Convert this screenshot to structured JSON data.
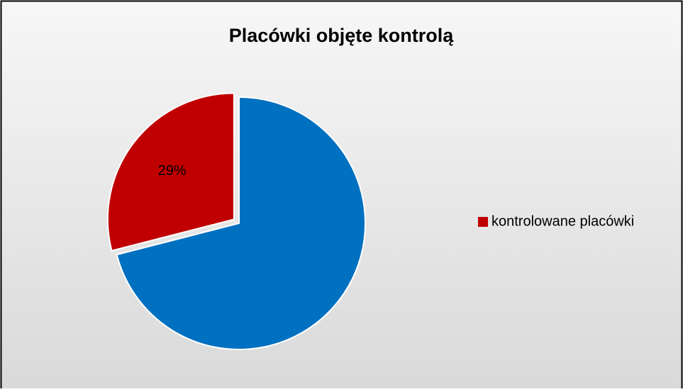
{
  "chart_data": {
    "type": "pie",
    "title": "Placówki objęte kontrolą",
    "categories": [
      null,
      "kontrolowane placówki"
    ],
    "values": [
      71,
      29
    ],
    "value_labels": [
      null,
      "29%"
    ],
    "colors": [
      "#0070C0",
      "#C00000"
    ],
    "legend": "right"
  }
}
